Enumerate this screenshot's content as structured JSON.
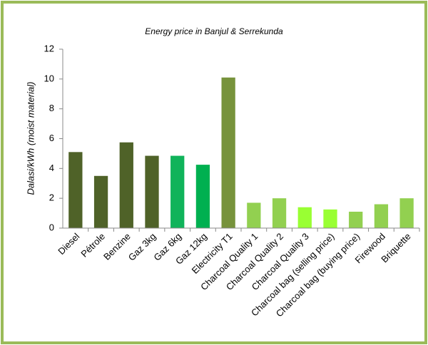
{
  "chart_data": {
    "type": "bar",
    "title": "Energy price in Banjul & Serrekunda",
    "y_label": "Dalasi/kWh (moist material)",
    "categories": [
      "Diesel",
      "Pétrole",
      "Benzine",
      "Gaz 3kg",
      "Gaz 6kg",
      "Gaz 12kg",
      "Electricity T1",
      "Charcoal Quality 1",
      "Charcoal Quality 2",
      "Charcoal Quality 3",
      "Charcoal bag (selling price)",
      "Charcoal bag (buying price)",
      "Firewood",
      "Briquette"
    ],
    "values": [
      5.1,
      3.5,
      5.75,
      4.85,
      4.85,
      4.25,
      10.1,
      1.7,
      2.0,
      1.4,
      1.25,
      1.1,
      1.6,
      2.0
    ],
    "colors": [
      "#4f6228",
      "#4f6228",
      "#4f6228",
      "#4f6228",
      "#10b35a",
      "#00b050",
      "#77933c",
      "#92d050",
      "#92d050",
      "#99ff33",
      "#99ff33",
      "#92d050",
      "#92d050",
      "#92d050"
    ],
    "ylim": [
      0,
      12
    ],
    "yticks": [
      0,
      2,
      4,
      6,
      8,
      10,
      12
    ],
    "grid": false
  }
}
